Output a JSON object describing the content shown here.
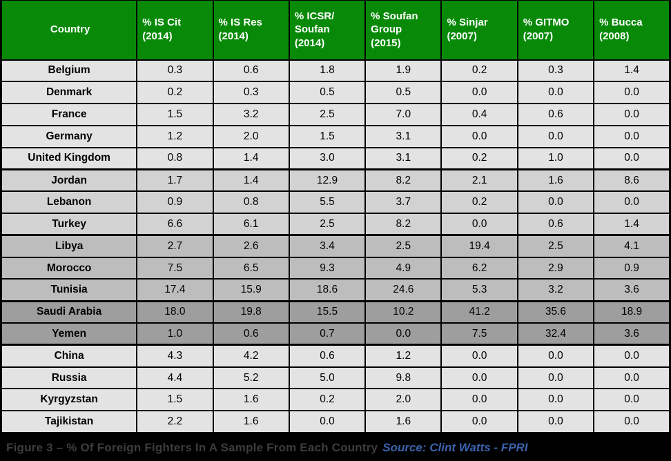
{
  "colors": {
    "header_bg": "#088a08",
    "header_text": "#ffffff",
    "grid_border": "#000000",
    "caption_bg": "#000000",
    "caption_text_color": "#3d3d3d",
    "source_text_color": "#3a62ad",
    "row_shades": {
      "light": "#e3e3e3",
      "medium_light": "#d2d2d2",
      "medium": "#bdbdbd",
      "dark": "#9e9e9e"
    }
  },
  "caption": {
    "text": "Figure 3 – % Of Foreign Fighters In A Sample From Each Country",
    "source": "Source: Clint Watts - FPRI"
  },
  "chart_data": {
    "type": "table",
    "title": "Figure 3 – % Of Foreign Fighters In A Sample From Each Country",
    "source": "Clint Watts - FPRI",
    "columns": [
      "Country",
      "% IS Cit\n(2014)",
      "% IS Res\n(2014)",
      "% ICSR/\nSoufan\n(2014)",
      "% Soufan\nGroup\n(2015)",
      "% Sinjar\n(2007)",
      "% GITMO\n(2007)",
      "% Bucca\n(2008)"
    ],
    "rows": [
      {
        "country": "Belgium",
        "values": [
          0.3,
          0.6,
          1.8,
          1.9,
          0.2,
          0.3,
          1.4
        ],
        "shade": "light",
        "group_end": false
      },
      {
        "country": "Denmark",
        "values": [
          0.2,
          0.3,
          0.5,
          0.5,
          0.0,
          0.0,
          0.0
        ],
        "shade": "light",
        "group_end": false
      },
      {
        "country": "France",
        "values": [
          1.5,
          3.2,
          2.5,
          7.0,
          0.4,
          0.6,
          0.0
        ],
        "shade": "light",
        "group_end": false
      },
      {
        "country": "Germany",
        "values": [
          1.2,
          2.0,
          1.5,
          3.1,
          0.0,
          0.0,
          0.0
        ],
        "shade": "light",
        "group_end": false
      },
      {
        "country": "United Kingdom",
        "values": [
          0.8,
          1.4,
          3.0,
          3.1,
          0.2,
          1.0,
          0.0
        ],
        "shade": "light",
        "group_end": true
      },
      {
        "country": "Jordan",
        "values": [
          1.7,
          1.4,
          12.9,
          8.2,
          2.1,
          1.6,
          8.6
        ],
        "shade": "medium_light",
        "group_end": false
      },
      {
        "country": "Lebanon",
        "values": [
          0.9,
          0.8,
          5.5,
          3.7,
          0.2,
          0.0,
          0.0
        ],
        "shade": "medium_light",
        "group_end": false
      },
      {
        "country": "Turkey",
        "values": [
          6.6,
          6.1,
          2.5,
          8.2,
          0.0,
          0.6,
          1.4
        ],
        "shade": "medium_light",
        "group_end": true
      },
      {
        "country": "Libya",
        "values": [
          2.7,
          2.6,
          3.4,
          2.5,
          19.4,
          2.5,
          4.1
        ],
        "shade": "medium",
        "group_end": false
      },
      {
        "country": "Morocco",
        "values": [
          7.5,
          6.5,
          9.3,
          4.9,
          6.2,
          2.9,
          0.9
        ],
        "shade": "medium",
        "group_end": false
      },
      {
        "country": "Tunisia",
        "values": [
          17.4,
          15.9,
          18.6,
          24.6,
          5.3,
          3.2,
          3.6
        ],
        "shade": "medium",
        "group_end": true
      },
      {
        "country": "Saudi Arabia",
        "values": [
          18.0,
          19.8,
          15.5,
          10.2,
          41.2,
          35.6,
          18.9
        ],
        "shade": "dark",
        "group_end": false
      },
      {
        "country": "Yemen",
        "values": [
          1.0,
          0.6,
          0.7,
          0.0,
          7.5,
          32.4,
          3.6
        ],
        "shade": "dark",
        "group_end": true
      },
      {
        "country": "China",
        "values": [
          4.3,
          4.2,
          0.6,
          1.2,
          0.0,
          0.0,
          0.0
        ],
        "shade": "light",
        "group_end": false
      },
      {
        "country": "Russia",
        "values": [
          4.4,
          5.2,
          5.0,
          9.8,
          0.0,
          0.0,
          0.0
        ],
        "shade": "light",
        "group_end": false
      },
      {
        "country": "Kyrgyzstan",
        "values": [
          1.5,
          1.6,
          0.2,
          2.0,
          0.0,
          0.0,
          0.0
        ],
        "shade": "light",
        "group_end": false
      },
      {
        "country": "Tajikistan",
        "values": [
          2.2,
          1.6,
          0.0,
          1.6,
          0.0,
          0.0,
          0.0
        ],
        "shade": "light",
        "group_end": false
      }
    ]
  }
}
